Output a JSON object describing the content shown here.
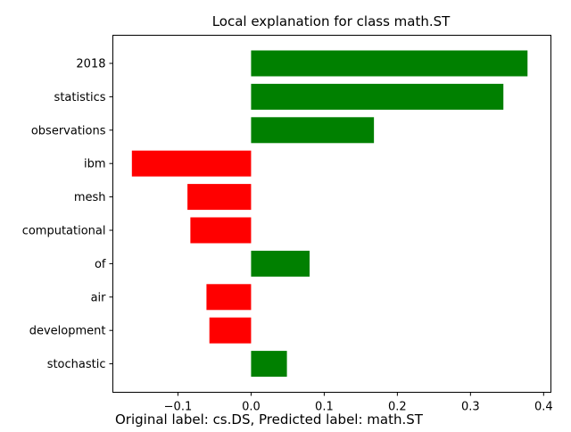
{
  "chart_data": {
    "type": "bar",
    "orientation": "horizontal",
    "title": "Local explanation for class math.ST",
    "footer": "Original label: cs.DS, Predicted label: math.ST",
    "xlabel": "",
    "ylabel": "",
    "categories": [
      "2018",
      "statistics",
      "observations",
      "ibm",
      "mesh",
      "computational",
      "of",
      "air",
      "development",
      "stochastic"
    ],
    "values": [
      0.378,
      0.345,
      0.168,
      -0.163,
      -0.087,
      -0.083,
      0.08,
      -0.061,
      -0.057,
      0.049
    ],
    "xlim": [
      -0.189,
      0.41
    ],
    "xticks": [
      -0.1,
      0.0,
      0.1,
      0.2,
      0.3,
      0.4
    ],
    "xtick_labels": [
      "−0.1",
      "0.0",
      "0.1",
      "0.2",
      "0.3",
      "0.4"
    ],
    "colors": {
      "positive": "#008000",
      "negative": "#ff0000"
    },
    "grid": false,
    "legend": "none"
  }
}
